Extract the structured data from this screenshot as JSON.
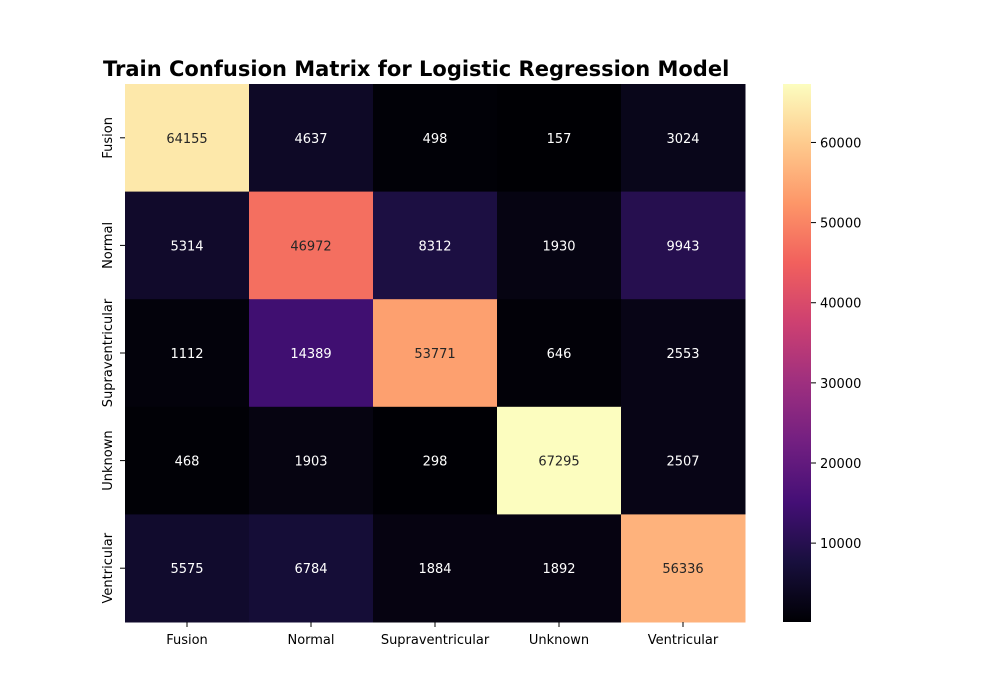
{
  "chart_data": {
    "type": "heatmap",
    "title": "Train Confusion Matrix for Logistic Regression Model",
    "xlabel": "",
    "ylabel": "",
    "x_categories": [
      "Fusion",
      "Normal",
      "Supraventricular",
      "Unknown",
      "Ventricular"
    ],
    "y_categories": [
      "Fusion",
      "Normal",
      "Supraventricular",
      "Unknown",
      "Ventricular"
    ],
    "values": [
      [
        64155,
        4637,
        498,
        157,
        3024
      ],
      [
        5314,
        46972,
        8312,
        1930,
        9943
      ],
      [
        1112,
        14389,
        53771,
        646,
        2553
      ],
      [
        468,
        1903,
        298,
        67295,
        2507
      ],
      [
        5575,
        6784,
        1884,
        1892,
        56336
      ]
    ],
    "colormap": "magma",
    "color_range": [
      157,
      67295
    ],
    "colorbar_ticks": [
      10000,
      20000,
      30000,
      40000,
      50000,
      60000
    ],
    "colorbar_tick_labels": [
      "10000",
      "20000",
      "30000",
      "40000",
      "50000",
      "60000"
    ],
    "annotations": true,
    "grid": false,
    "legend": "colorbar-right"
  }
}
